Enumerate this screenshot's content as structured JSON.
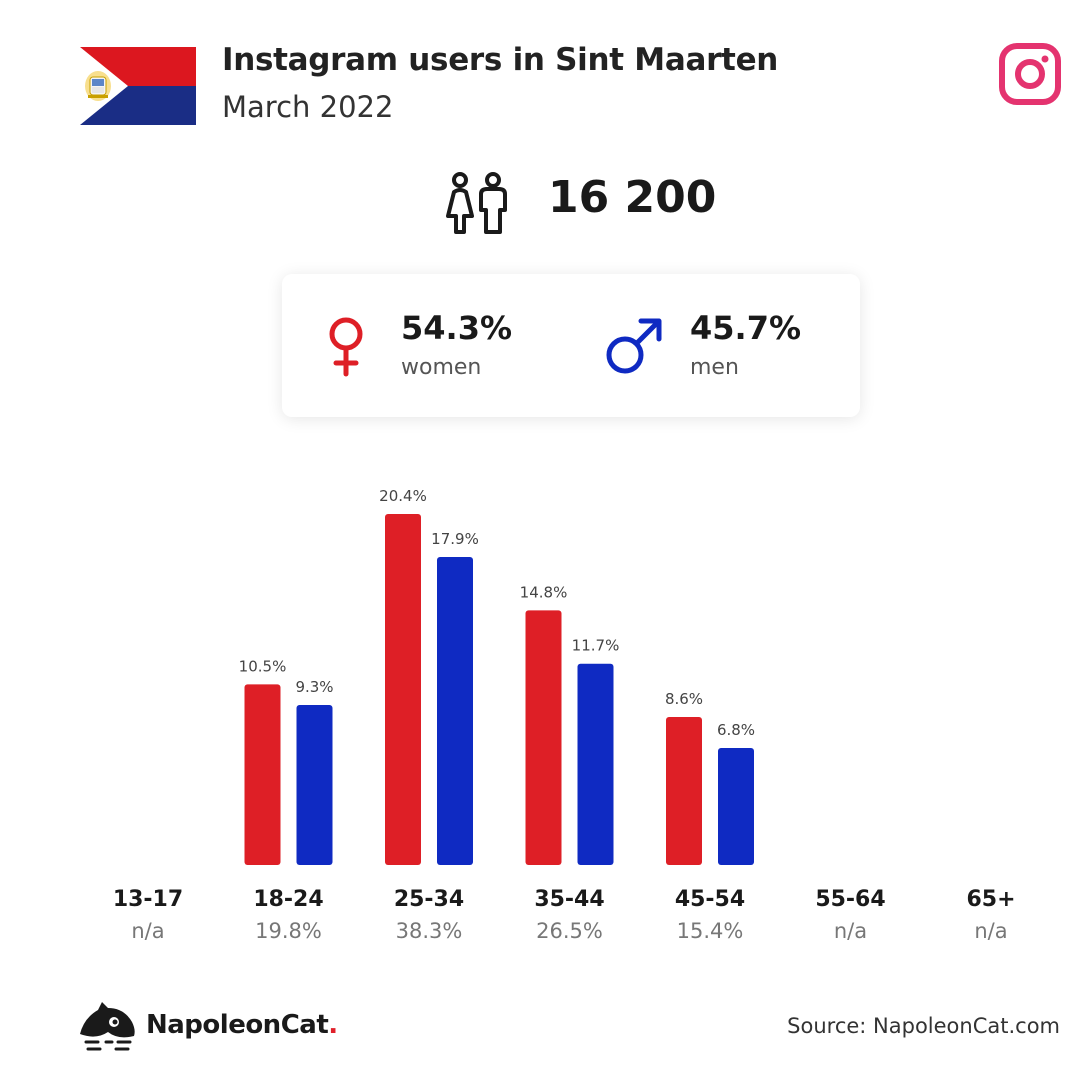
{
  "header": {
    "title": "Instagram users in Sint Maarten",
    "subtitle": "March 2022"
  },
  "icons": {
    "flag": "sint-maarten-flag",
    "platform": "instagram-icon",
    "people": "people-icon",
    "female": "female-symbol-icon",
    "male": "male-symbol-icon",
    "logo": "napoleoncat-logo-icon"
  },
  "colors": {
    "women": "#de1f26",
    "men": "#0f2ac2",
    "instagram": "#e4336f",
    "flag_red": "#dc171f",
    "flag_blue": "#1a2d85"
  },
  "total_users": "16 200",
  "gender": {
    "women": {
      "pct": "54.3%",
      "label": "women"
    },
    "men": {
      "pct": "45.7%",
      "label": "men"
    }
  },
  "chart_data": {
    "type": "bar",
    "categories": [
      "13-17",
      "18-24",
      "25-34",
      "35-44",
      "45-54",
      "55-64",
      "65+"
    ],
    "category_shares": [
      "n/a",
      "19.8%",
      "38.3%",
      "26.5%",
      "15.4%",
      "n/a",
      "n/a"
    ],
    "series": [
      {
        "name": "women",
        "values": [
          null,
          10.5,
          20.4,
          14.8,
          8.6,
          null,
          null
        ],
        "labels": [
          "",
          "10.5%",
          "20.4%",
          "14.8%",
          "8.6%",
          "",
          ""
        ],
        "color": "#de1f26"
      },
      {
        "name": "men",
        "values": [
          null,
          9.3,
          17.9,
          11.7,
          6.8,
          null,
          null
        ],
        "labels": [
          "",
          "9.3%",
          "17.9%",
          "11.7%",
          "6.8%",
          "",
          ""
        ],
        "color": "#0f2ac2"
      }
    ],
    "unit": "%",
    "ylim": [
      0,
      20.4
    ],
    "grid": false
  },
  "footer": {
    "brand": "NapoleonCat",
    "brand_dot": ".",
    "source": "Source: NapoleonCat.com"
  }
}
